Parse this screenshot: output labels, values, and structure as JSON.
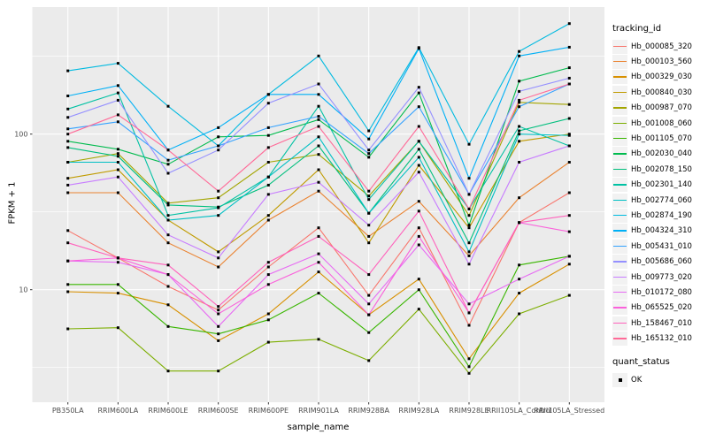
{
  "chart_data": {
    "type": "line",
    "title": "",
    "xlabel": "sample_name",
    "ylabel": "FPKM + 1",
    "y_scale": "log10",
    "y_ticks": [
      100,
      10
    ],
    "y_minor_gridlines": [
      316.23,
      31.623,
      3.1623
    ],
    "ylim": [
      1.9,
      660
    ],
    "grid": "on",
    "legend_position": "right",
    "point_marker": "black-square",
    "categories": [
      "PB350LA",
      "RRIM600LA",
      "RRIM600LE",
      "RRIM600SE",
      "RRIM600PE",
      "RRIM901LA",
      "RRIM928BA",
      "RRIM928LA",
      "RRIM928LE",
      "RRII105LA_Control",
      "RRII105LA_Stressed"
    ],
    "series": [
      {
        "name": "Hb_000085_320",
        "color": "#F8766D",
        "values": [
          24,
          16,
          10.5,
          7.4,
          14,
          25,
          9.2,
          25,
          5.9,
          27,
          42
        ]
      },
      {
        "name": "Hb_000103_560",
        "color": "#EA8331",
        "values": [
          42,
          42,
          20,
          14,
          28,
          43,
          22,
          37,
          16.5,
          39,
          66
        ]
      },
      {
        "name": "Hb_000329_030",
        "color": "#D89000",
        "values": [
          9.7,
          9.5,
          8.0,
          4.7,
          7.0,
          13,
          6.9,
          11.7,
          3.6,
          9.5,
          14.6
        ]
      },
      {
        "name": "Hb_000840_030",
        "color": "#C09B00",
        "values": [
          52,
          59,
          28,
          17.5,
          30,
          59,
          20,
          63,
          25,
          90,
          100
        ]
      },
      {
        "name": "Hb_000987_070",
        "color": "#A3A500",
        "values": [
          66,
          75,
          36,
          39,
          66,
          74,
          40,
          90,
          30,
          160,
          155
        ]
      },
      {
        "name": "Hb_001008_060",
        "color": "#7CAE00",
        "values": [
          5.6,
          5.7,
          3.0,
          3.0,
          4.6,
          4.8,
          3.5,
          7.5,
          2.9,
          7.0,
          9.2
        ]
      },
      {
        "name": "Hb_001105_070",
        "color": "#39B600",
        "values": [
          10.8,
          10.8,
          5.8,
          5.2,
          6.4,
          9.5,
          5.3,
          10.0,
          3.2,
          14.4,
          16.4
        ]
      },
      {
        "name": "Hb_002030_040",
        "color": "#00BB4E",
        "values": [
          90,
          80,
          64,
          96,
          98,
          124,
          71,
          184,
          26,
          219,
          267
        ]
      },
      {
        "name": "Hb_002078_150",
        "color": "#00BF7D",
        "values": [
          82,
          72,
          35,
          34,
          47,
          84,
          31,
          80,
          20,
          105,
          126
        ]
      },
      {
        "name": "Hb_002301_140",
        "color": "#00C1A3",
        "values": [
          145,
          184,
          30,
          33.6,
          53,
          151,
          38,
          90,
          33,
          112,
          84
        ]
      },
      {
        "name": "Hb_002774_060",
        "color": "#00BFC4",
        "values": [
          66,
          66,
          28,
          30,
          53,
          96,
          31,
          71,
          17.5,
          100,
          98
        ]
      },
      {
        "name": "Hb_002874_190",
        "color": "#00BAE0",
        "values": [
          255,
          285,
          151,
          84,
          180,
          318,
          105,
          360,
          86,
          340,
          513
        ]
      },
      {
        "name": "Hb_004324_310",
        "color": "#00B0F6",
        "values": [
          176,
          205,
          79,
          110,
          180,
          180,
          93,
          355,
          52,
          318,
          362
        ]
      },
      {
        "name": "Hb_005431_010",
        "color": "#35A2FF",
        "values": [
          108,
          120,
          68,
          84,
          110,
          130,
          75,
          150,
          41,
          150,
          210
        ]
      },
      {
        "name": "Hb_005686_060",
        "color": "#9590FF",
        "values": [
          128,
          165,
          56,
          79,
          158,
          210,
          79,
          200,
          41,
          188,
          229
        ]
      },
      {
        "name": "Hb_009773_020",
        "color": "#C77CFF",
        "values": [
          47,
          53,
          22.5,
          16,
          41,
          49,
          26,
          57,
          14.6,
          66,
          84
        ]
      },
      {
        "name": "Hb_010172_080",
        "color": "#E76BF3",
        "values": [
          15.3,
          15,
          12.5,
          5.8,
          12.5,
          17,
          8.1,
          19.4,
          8.1,
          11.7,
          16.4
        ]
      },
      {
        "name": "Hb_065525_020",
        "color": "#FA62DB",
        "values": [
          15.3,
          16,
          12.5,
          7.0,
          10.8,
          15,
          6.9,
          22,
          7.1,
          27,
          23.6
        ]
      },
      {
        "name": "Hb_158467_010",
        "color": "#FF62BC",
        "values": [
          20,
          16,
          14.4,
          7.8,
          15,
          22,
          12.5,
          32,
          7.1,
          27,
          30
        ]
      },
      {
        "name": "Hb_165132_010",
        "color": "#FF6A98",
        "values": [
          100,
          133,
          79,
          43,
          82,
          112,
          43,
          112,
          33,
          165,
          210
        ]
      }
    ]
  },
  "legend": {
    "tracking_title": "tracking_id",
    "quant_title": "quant_status",
    "quant_value": "OK"
  },
  "colors": {
    "panel_background": "#EBEBEB",
    "gridline": "#FFFFFF",
    "tick_label": "#4D4D4D",
    "tick_mark": "#333333",
    "point": "#000000",
    "legend_key_background": "#F2F2F2"
  }
}
